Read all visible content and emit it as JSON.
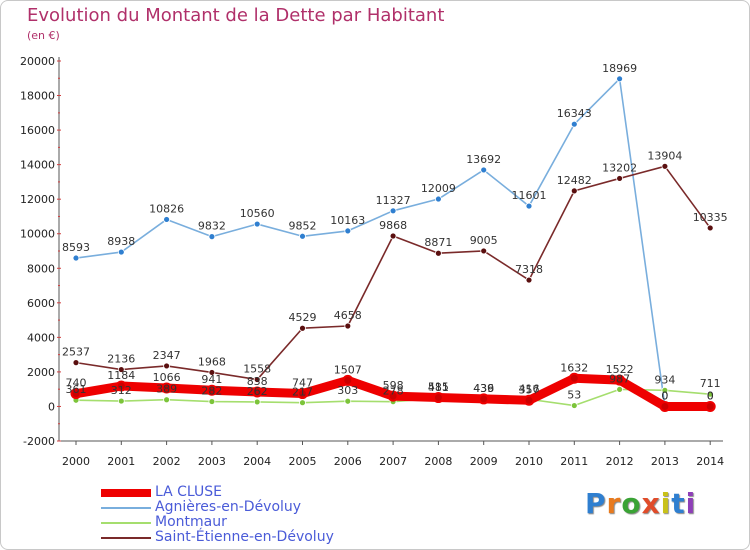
{
  "title": "Evolution du Montant de la Dette par Habitant",
  "unit": "(en €)",
  "logo": {
    "text": "Proxiti",
    "colors": [
      "#2f7fd0",
      "#e87a1e",
      "#3aa335",
      "#e04c2a",
      "#c9c21a",
      "#2f7fd0",
      "#8e3fb8"
    ]
  },
  "chart_data": {
    "type": "line",
    "title": "Evolution du Montant de la Dette par Habitant",
    "ylabel": "(en €)",
    "xlabel": "",
    "ylim": [
      -2000,
      20000
    ],
    "yticks": [
      -2000,
      0,
      2000,
      4000,
      6000,
      8000,
      10000,
      12000,
      14000,
      16000,
      18000,
      20000
    ],
    "x": [
      "2000",
      "2001",
      "2002",
      "2003",
      "2004",
      "2005",
      "2006",
      "2007",
      "2008",
      "2009",
      "2010",
      "2011",
      "2012",
      "2013",
      "2014"
    ],
    "series": [
      {
        "name": "LA CLUSE",
        "color": "#ee0000",
        "marker": "#cc0000",
        "values": [
          740,
          1184,
          1066,
          941,
          838,
          747,
          1507,
          598,
          515,
          436,
          357,
          1632,
          1522,
          0,
          0
        ],
        "labels": [
          "740",
          "1184",
          "1066",
          "941",
          "838",
          "747",
          "1507",
          "598",
          "515",
          "436",
          "357",
          "1632",
          "1522",
          "0",
          "0"
        ]
      },
      {
        "name": "Agnières-en-Dévoluy",
        "color": "#79aedd",
        "marker": "#2f7fd0",
        "values": [
          8593,
          8938,
          10826,
          9832,
          10560,
          9852,
          10163,
          11327,
          12009,
          13692,
          11601,
          16343,
          18969,
          0,
          0
        ],
        "labels": [
          "8593",
          "8938",
          "10826",
          "9832",
          "10560",
          "9852",
          "10163",
          "11327",
          "12009",
          "13692",
          "11601",
          "16343",
          "18969",
          "0",
          "0"
        ]
      },
      {
        "name": "Montmaur",
        "color": "#a5de6e",
        "marker": "#7cc43a",
        "values": [
          361,
          312,
          389,
          282,
          262,
          217,
          303,
          278,
          481,
          439,
          416,
          53,
          987,
          934,
          711
        ],
        "labels": [
          "361",
          "312",
          "389",
          "282",
          "262",
          "217",
          "303",
          "278",
          "481",
          "439",
          "416",
          "53",
          "987",
          "934",
          "711"
        ]
      },
      {
        "name": "Saint-Étienne-en-Dévoluy",
        "color": "#7a2a2a",
        "marker": "#5a0f0f",
        "values": [
          2537,
          2136,
          2347,
          1968,
          1558,
          4529,
          4658,
          9868,
          8871,
          9005,
          7318,
          12482,
          13202,
          13904,
          10335
        ],
        "labels": [
          "2537",
          "2136",
          "2347",
          "1968",
          "1558",
          "4529",
          "4658",
          "9868",
          "8871",
          "9005",
          "7318",
          "12482",
          "13202",
          "13904",
          "10335"
        ]
      }
    ],
    "legend": [
      "LA CLUSE",
      "Agnières-en-Dévoluy",
      "Montmaur",
      "Saint-Étienne-en-Dévoluy"
    ],
    "legend_position": "bottom-left",
    "grid": false
  }
}
